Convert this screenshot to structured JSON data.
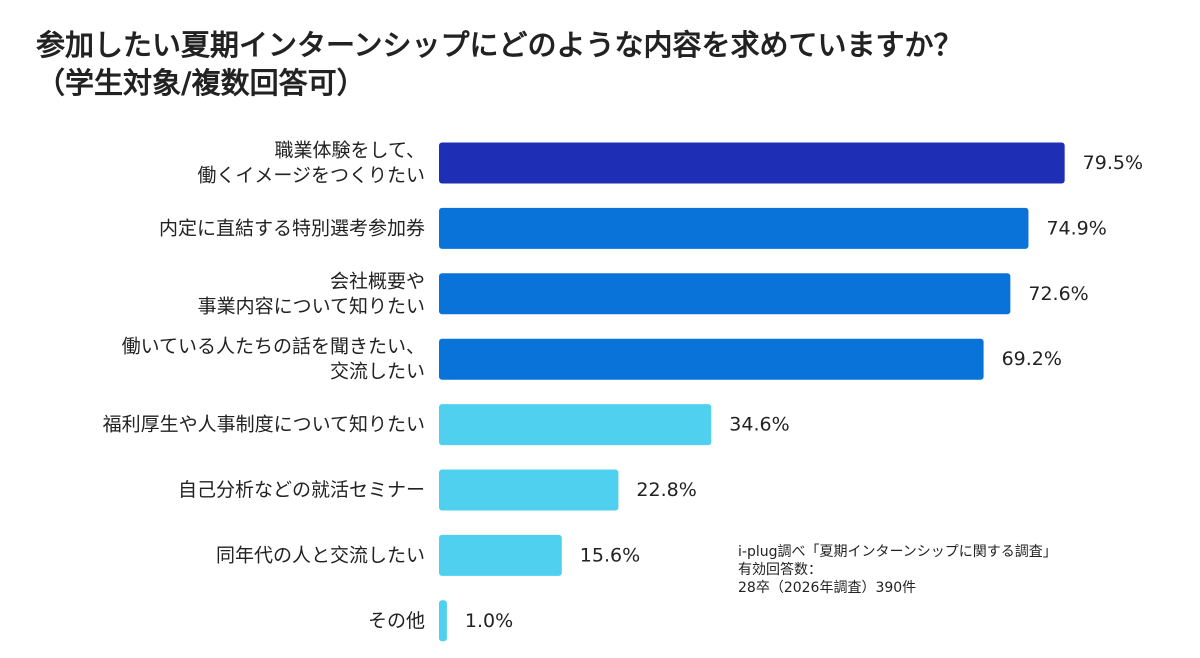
{
  "title": {
    "line1": "参加したい夏期インターンシップにどのような内容を求めていますか？",
    "line2": "（学生対象/複数回答可）"
  },
  "chart_data": {
    "type": "bar",
    "orientation": "horizontal",
    "categories": [
      [
        "職業体験をして、",
        "働くイメージをつくりたい"
      ],
      [
        "内定に直結する特別選考参加券"
      ],
      [
        "会社概要や",
        "事業内容について知りたい"
      ],
      [
        "働いている人たちの話を聞きたい、",
        "交流したい"
      ],
      [
        "福利厚生や人事制度について知りたい"
      ],
      [
        "自己分析などの就活セミナー"
      ],
      [
        "同年代の人と交流したい"
      ],
      [
        "その他"
      ]
    ],
    "values": [
      79.5,
      74.9,
      72.6,
      69.2,
      34.6,
      22.8,
      15.6,
      1.0
    ],
    "value_labels": [
      "79.5%",
      "74.9%",
      "72.6%",
      "69.2%",
      "34.6%",
      "22.8%",
      "15.6%",
      "1.0%"
    ],
    "bar_colors": [
      "#1f2fb5",
      "#0a73d9",
      "#0a73d9",
      "#0a73d9",
      "#4fd0ee",
      "#4fd0ee",
      "#4fd0ee",
      "#4fd0ee"
    ],
    "xlim": [
      0,
      100
    ],
    "grid": false,
    "legend": "none"
  },
  "note": {
    "line1": "i-plug調べ「夏期インターンシップに関する調査」",
    "line2": "有効回答数：",
    "line3": "28卒（2026年調査）390件"
  }
}
